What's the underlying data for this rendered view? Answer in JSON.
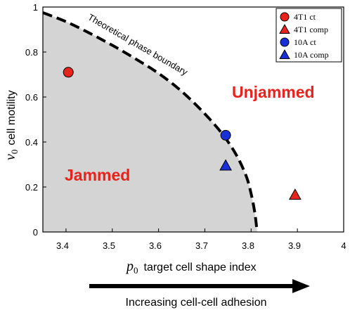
{
  "chart_data": {
    "type": "scatter",
    "xlabel": {
      "symbol": "p",
      "sub": "0",
      "text": "target cell shape index"
    },
    "ylabel": {
      "symbol": "v",
      "sub": "0",
      "text": "cell motility"
    },
    "xlim": [
      3.35,
      4.0
    ],
    "ylim": [
      0,
      1.0
    ],
    "xticks": [
      "3.4",
      "3.5",
      "3.6",
      "3.7",
      "3.8",
      "3.9",
      "4"
    ],
    "yticks": [
      "0",
      "0.2",
      "0.4",
      "0.6",
      "0.8",
      "1"
    ],
    "series": [
      {
        "name": "4T1 ct",
        "marker": "circle",
        "color": "#e8231c",
        "x": [
          3.405
        ],
        "y": [
          0.71
        ]
      },
      {
        "name": "4T1 comp",
        "marker": "triangle",
        "color": "#e8231c",
        "x": [
          3.895
        ],
        "y": [
          0.165
        ]
      },
      {
        "name": "10A ct",
        "marker": "circle",
        "color": "#1730d8",
        "x": [
          3.745
        ],
        "y": [
          0.43
        ]
      },
      {
        "name": "10A comp",
        "marker": "triangle",
        "color": "#1730d8",
        "x": [
          3.745
        ],
        "y": [
          0.295
        ]
      }
    ],
    "boundary": {
      "label": "Theoretical phase boundary",
      "x": [
        3.35,
        3.4,
        3.45,
        3.5,
        3.55,
        3.6,
        3.65,
        3.7,
        3.74,
        3.77,
        3.79,
        3.8,
        3.808,
        3.813
      ],
      "y": [
        0.975,
        0.935,
        0.885,
        0.83,
        0.77,
        0.705,
        0.625,
        0.525,
        0.43,
        0.335,
        0.245,
        0.17,
        0.085,
        0.0
      ]
    },
    "regions": [
      {
        "label": "Jammed",
        "color": "#e8231c"
      },
      {
        "label": "Unjammed",
        "color": "#e8231c"
      }
    ],
    "arrow_label": "Increasing cell-cell adhesion",
    "legend_position": "top-right",
    "grid": false,
    "colors": {
      "jammed_fill": "#d4d4d4",
      "boundary": "#000000"
    }
  }
}
